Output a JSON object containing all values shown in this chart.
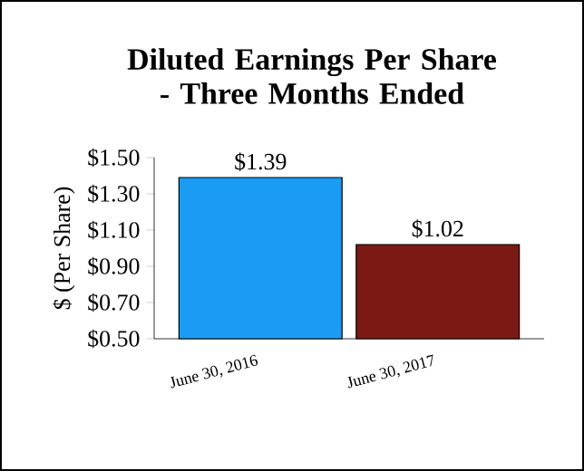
{
  "chart_data": {
    "type": "bar",
    "title": "Diluted Earnings Per Share - Three Months Ended",
    "ylabel": "$ (Per Share)",
    "categories": [
      "June 30, 2016",
      "June 30, 2017"
    ],
    "values": [
      1.39,
      1.02
    ],
    "colors": [
      "#1a9cf4",
      "#7b1a14"
    ],
    "value_labels": [
      "$1.39",
      "$1.02"
    ],
    "ylim": [
      0.5,
      1.5
    ],
    "yticks": [
      {
        "value": 0.5,
        "label": "$0.50"
      },
      {
        "value": 0.7,
        "label": "$0.70"
      },
      {
        "value": 0.9,
        "label": "$0.90"
      },
      {
        "value": 1.1,
        "label": "$1.10"
      },
      {
        "value": 1.3,
        "label": "$1.30"
      },
      {
        "value": 1.5,
        "label": "$1.50"
      }
    ]
  }
}
